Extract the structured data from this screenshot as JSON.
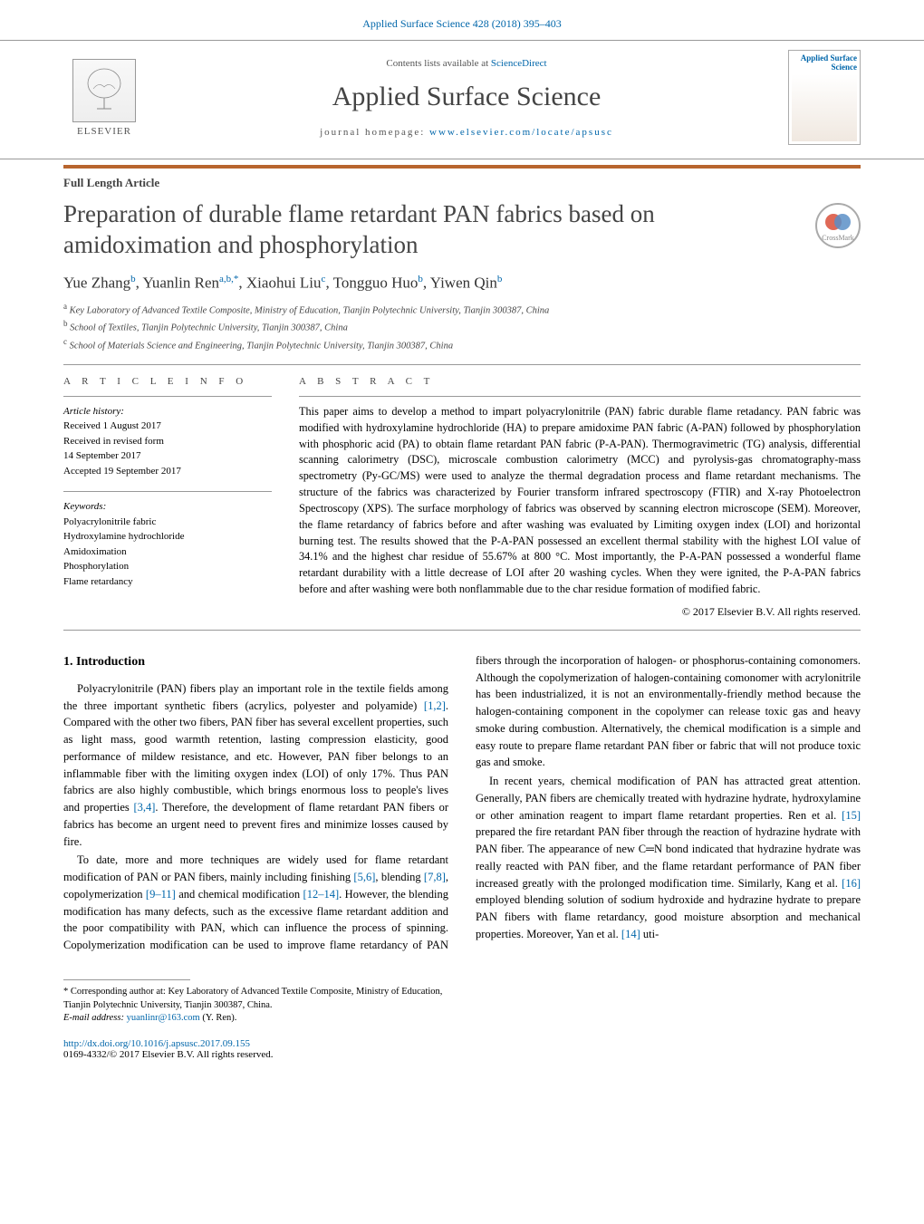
{
  "header": {
    "journal_reference": "Applied Surface Science 428 (2018) 395–403",
    "contents_line_prefix": "Contents lists available at ",
    "contents_link_text": "ScienceDirect",
    "journal_name": "Applied Surface Science",
    "homepage_prefix": "journal homepage: ",
    "homepage_link": "www.elsevier.com/locate/apsusc",
    "elsevier_label": "ELSEVIER",
    "cover_title": "Applied Surface Science",
    "crossmark_label": "CrossMark"
  },
  "article": {
    "type": "Full Length Article",
    "title": "Preparation of durable flame retardant PAN fabrics based on amidoximation and phosphorylation",
    "authors_html": "Yue Zhang<sup>b</sup>, Yuanlin Ren<sup>a,b,*</sup>, Xiaohui Liu<sup>c</sup>, Tongguo Huo<sup>b</sup>, Yiwen Qin<sup>b</sup>",
    "affiliations": [
      {
        "sup": "a",
        "text": "Key Laboratory of Advanced Textile Composite, Ministry of Education, Tianjin Polytechnic University, Tianjin 300387, China"
      },
      {
        "sup": "b",
        "text": "School of Textiles, Tianjin Polytechnic University, Tianjin 300387, China"
      },
      {
        "sup": "c",
        "text": "School of Materials Science and Engineering, Tianjin Polytechnic University, Tianjin 300387, China"
      }
    ]
  },
  "info": {
    "heading": "a r t i c l e   i n f o",
    "history_label": "Article history:",
    "history_lines": [
      "Received 1 August 2017",
      "Received in revised form",
      "14 September 2017",
      "Accepted 19 September 2017"
    ],
    "keywords_label": "Keywords:",
    "keywords": [
      "Polyacrylonitrile fabric",
      "Hydroxylamine hydrochloride",
      "Amidoximation",
      "Phosphorylation",
      "Flame retardancy"
    ]
  },
  "abstract": {
    "heading": "a b s t r a c t",
    "text": "This paper aims to develop a method to impart polyacrylonitrile (PAN) fabric durable flame retadancy. PAN fabric was modified with hydroxylamine hydrochloride (HA) to prepare amidoxime PAN fabric (A-PAN) followed by phosphorylation with phosphoric acid (PA) to obtain flame retardant PAN fabric (P-A-PAN). Thermogravimetric (TG) analysis, differential scanning calorimetry (DSC), microscale combustion calorimetry (MCC) and pyrolysis-gas chromatography-mass spectrometry (Py-GC/MS) were used to analyze the thermal degradation process and flame retardant mechanisms. The structure of the fabrics was characterized by Fourier transform infrared spectroscopy (FTIR) and X-ray Photoelectron Spectroscopy (XPS). The surface morphology of fabrics was observed by scanning electron microscope (SEM). Moreover, the flame retardancy of fabrics before and after washing was evaluated by Limiting oxygen index (LOI) and horizontal burning test. The results showed that the P-A-PAN possessed an excellent thermal stability with the highest LOI value of 34.1% and the highest char residue of 55.67% at 800 °C. Most importantly, the P-A-PAN possessed a wonderful flame retardant durability with a little decrease of LOI after 20 washing cycles. When they were ignited, the P-A-PAN fabrics before and after washing were both nonflammable due to the char residue formation of modified fabric.",
    "copyright": "© 2017 Elsevier B.V. All rights reserved."
  },
  "body": {
    "section_heading": "1.  Introduction",
    "p1_a": "Polyacrylonitrile (PAN) fibers play an important role in the textile fields among the three important synthetic fibers (acrylics, polyester and polyamide) ",
    "p1_ref1": "[1,2]",
    "p1_b": ". Compared with the other two fibers, PAN fiber has several excellent properties, such as light mass, good warmth retention, lasting compression elasticity, good performance of mildew resistance, and etc. However, PAN fiber belongs to an inflammable fiber with the limiting oxygen index (LOI) of only 17%. Thus PAN fabrics are also highly combustible, which brings enormous loss to people's lives and properties ",
    "p1_ref2": "[3,4]",
    "p1_c": ". Therefore, the development of flame retardant PAN fibers or fabrics has become an urgent need to prevent fires and minimize losses caused by fire.",
    "p2_a": "To date, more and more techniques are widely used for flame retardant modification of PAN or PAN fibers, mainly including finishing ",
    "p2_ref1": "[5,6]",
    "p2_b": ", blending ",
    "p2_ref2": "[7,8]",
    "p2_c": ", copolymerization ",
    "p2_ref3": "[9–11]",
    "p2_d": " and chemical modification ",
    "p2_ref4": "[12–14]",
    "p2_e": ". However, the blending modification has many defects, such as the excessive flame retardant addition and ",
    "p3": "the poor compatibility with PAN, which can influence the process of spinning. Copolymerization modification can be used to improve flame retardancy of PAN fibers through the incorporation of halogen- or phosphorus-containing comonomers. Although the copolymerization of halogen-containing comonomer with acrylonitrile has been industrialized, it is not an environmentally-friendly method because the halogen-containing component in the copolymer can release toxic gas and heavy smoke during combustion. Alternatively, the chemical modification is a simple and easy route to prepare flame retardant PAN fiber or fabric that will not produce toxic gas and smoke.",
    "p4_a": "In recent years, chemical modification of PAN has attracted great attention. Generally, PAN fibers are chemically treated with hydrazine hydrate, hydroxylamine or other amination reagent to impart flame retardant properties. Ren et al. ",
    "p4_ref1": "[15]",
    "p4_b": " prepared the fire retardant PAN fiber through the reaction of hydrazine hydrate with PAN fiber. The appearance of new C═N bond indicated that hydrazine hydrate was really reacted with PAN fiber, and the flame retardant performance of PAN fiber increased greatly with the prolonged modification time. Similarly, Kang et al. ",
    "p4_ref2": "[16]",
    "p4_c": " employed blending solution of sodium hydroxide and hydrazine hydrate to prepare PAN fibers with flame retardancy, good moisture absorption and mechanical properties. Moreover, Yan et al. ",
    "p4_ref3": "[14]",
    "p4_d": " uti-"
  },
  "footnote": {
    "corr_label": "* Corresponding author at: Key Laboratory of Advanced Textile Composite, Ministry of Education, Tianjin Polytechnic University, Tianjin 300387, China.",
    "email_label": "E-mail address: ",
    "email": "yuanlinr@163.com",
    "email_suffix": " (Y. Ren)."
  },
  "doi": {
    "link": "http://dx.doi.org/10.1016/j.apsusc.2017.09.155",
    "issn_line": "0169-4332/© 2017 Elsevier B.V. All rights reserved."
  },
  "colors": {
    "link": "#0066aa",
    "rule": "#b8652e",
    "text": "#000000",
    "heading": "#444444"
  }
}
